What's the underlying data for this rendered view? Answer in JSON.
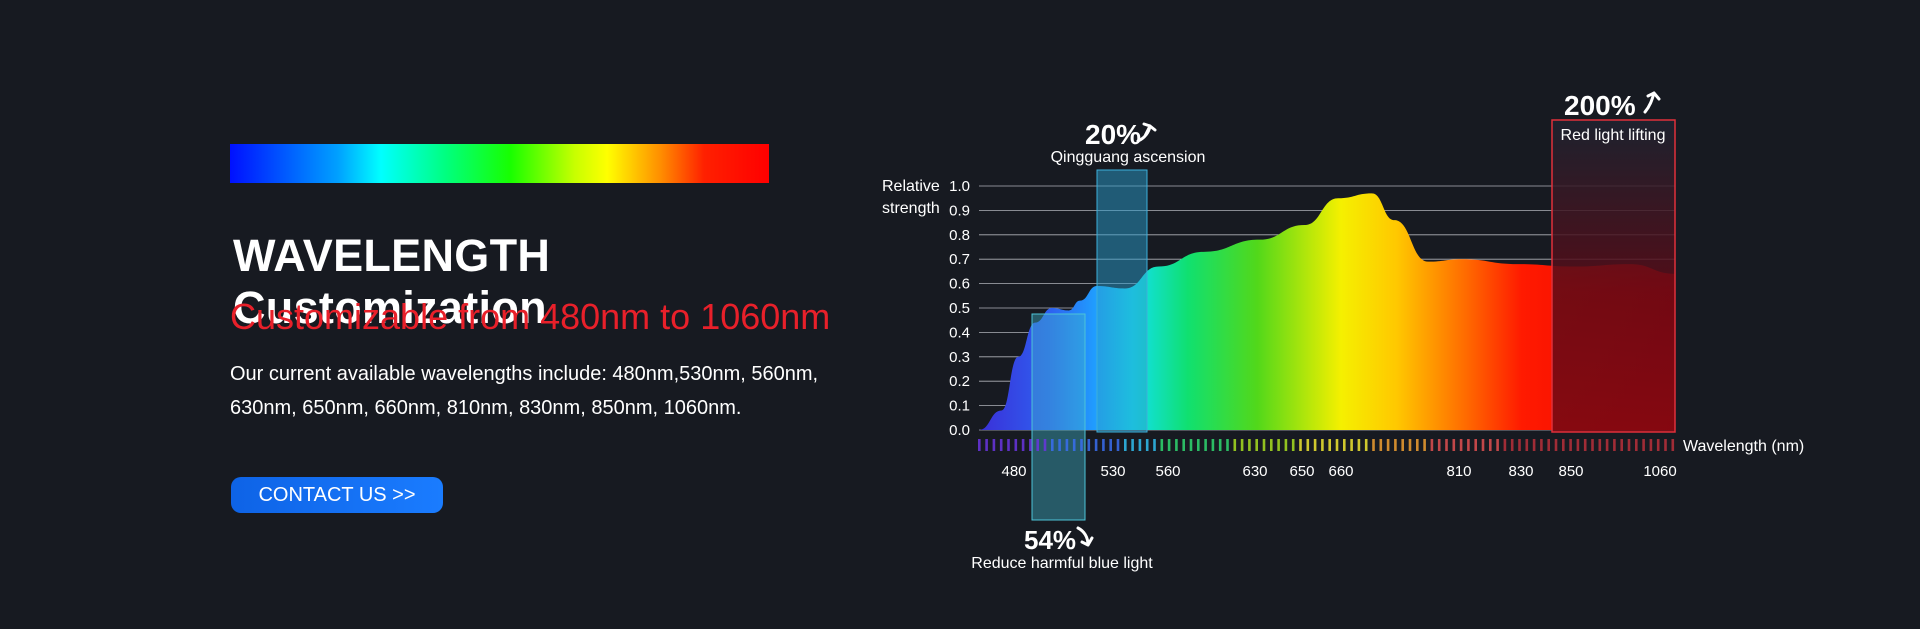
{
  "hero": {
    "headline": "WAVELENGTH Customization",
    "subline": "Customizable from 480nm to 1060nm",
    "desc_line1": "Our current available wavelengths include: 480nm,530nm, 560nm,",
    "desc_line2": "630nm, 650nm, 660nm, 810nm, 830nm, 850nm, 1060nm.",
    "contact_label": "CONTACT US >>"
  },
  "chart_data": {
    "type": "area",
    "title": "",
    "ylabel_line1": "Relative",
    "ylabel_line2": "strength",
    "xlabel": "Wavelength (nm)",
    "ylim": [
      0,
      1.0
    ],
    "y_ticks": [
      "0.0",
      "0.1",
      "0.2",
      "0.3",
      "0.4",
      "0.5",
      "0.6",
      "0.7",
      "0.8",
      "0.9",
      "1.0"
    ],
    "grid": true,
    "x_tick_labels": [
      "480",
      "530",
      "560",
      "630",
      "650",
      "660",
      "810",
      "830",
      "850",
      "1060"
    ],
    "curve": [
      {
        "x": 440,
        "y": 0.0
      },
      {
        "x": 460,
        "y": 0.08
      },
      {
        "x": 475,
        "y": 0.3
      },
      {
        "x": 490,
        "y": 0.44
      },
      {
        "x": 505,
        "y": 0.5
      },
      {
        "x": 520,
        "y": 0.49
      },
      {
        "x": 530,
        "y": 0.53
      },
      {
        "x": 545,
        "y": 0.59
      },
      {
        "x": 570,
        "y": 0.58
      },
      {
        "x": 600,
        "y": 0.67
      },
      {
        "x": 640,
        "y": 0.73
      },
      {
        "x": 690,
        "y": 0.78
      },
      {
        "x": 730,
        "y": 0.84
      },
      {
        "x": 760,
        "y": 0.95
      },
      {
        "x": 790,
        "y": 0.97
      },
      {
        "x": 810,
        "y": 0.86
      },
      {
        "x": 840,
        "y": 0.69
      },
      {
        "x": 870,
        "y": 0.7
      },
      {
        "x": 920,
        "y": 0.68
      },
      {
        "x": 970,
        "y": 0.67
      },
      {
        "x": 1020,
        "y": 0.68
      },
      {
        "x": 1060,
        "y": 0.64
      }
    ],
    "callouts": [
      {
        "value": "20%",
        "label": "Qingguang ascension",
        "direction": "up",
        "color": "#2a9ccc"
      },
      {
        "value": "54%",
        "label": "Reduce harmful blue light",
        "direction": "down",
        "color": "#3fb2c8"
      },
      {
        "value": "200%",
        "label": "Red light lifting",
        "direction": "up",
        "color": "#e0303a"
      }
    ]
  }
}
